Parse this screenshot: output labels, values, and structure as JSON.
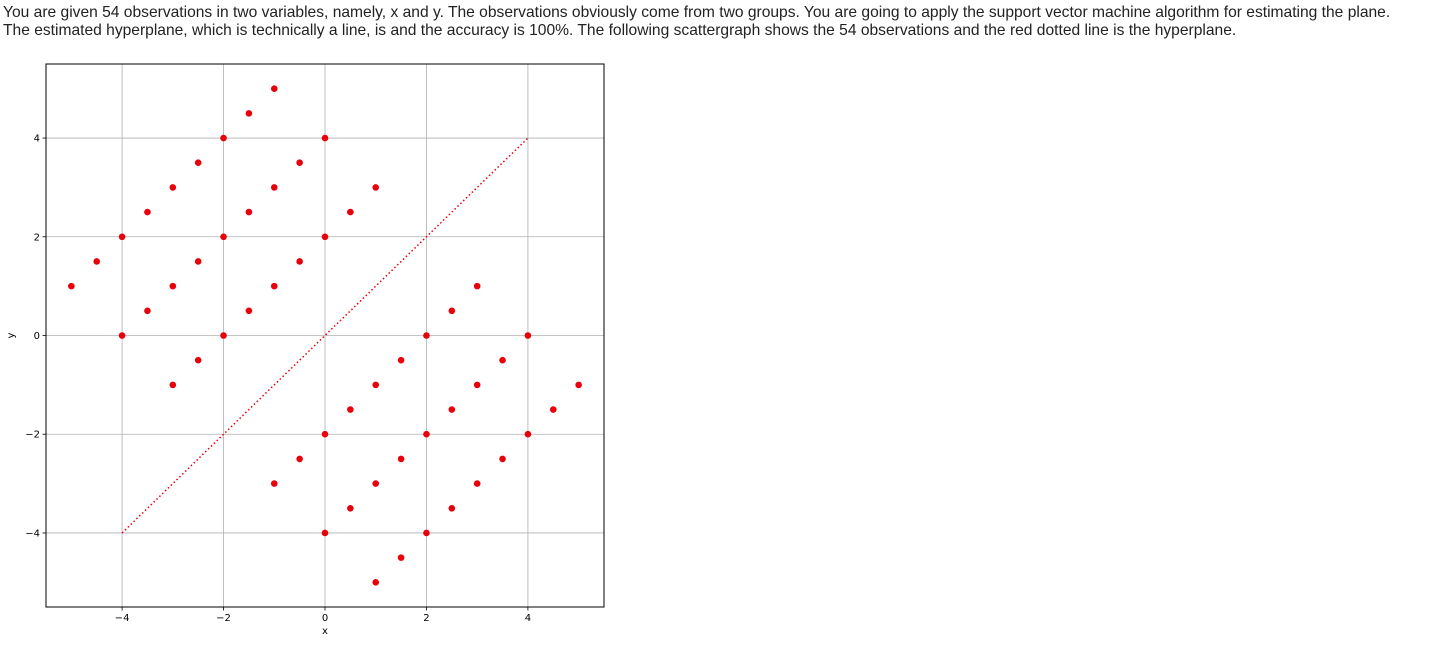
{
  "question": {
    "line1": "You are given 54 observations in two variables, namely, x and y.  The observations obviously come from two groups.  You are going to apply the support vector machine algorithm for estimating the plane.",
    "line2": "The estimated hyperplane, which is technically a line, is   and the accuracy is 100%.  The following scattergraph shows the 54 observations and the red dotted line is the hyperplane."
  },
  "chart_data": {
    "type": "scatter",
    "xlabel": "x",
    "ylabel": "y",
    "xlim": [
      -5.5,
      5.5
    ],
    "ylim": [
      -5.5,
      5.5
    ],
    "xticks": [
      -4,
      -2,
      0,
      2,
      4
    ],
    "yticks": [
      -4,
      -2,
      0,
      2,
      4
    ],
    "xtick_labels": [
      "−4",
      "−2",
      "0",
      "2",
      "4"
    ],
    "ytick_labels": [
      "−4",
      "−2",
      "0",
      "2",
      "4"
    ],
    "grid": true,
    "point_color": "#e8000b",
    "series": [
      {
        "x": [
          -5,
          -4.5,
          -4,
          -4,
          -3.5,
          -3.5,
          -3,
          -3,
          -3,
          -2.5,
          -2.5,
          -2.5,
          -2,
          -2,
          -2,
          -1.5,
          -1.5,
          -1.5,
          -1,
          -1,
          -1,
          -1,
          -0.5,
          -0.5,
          0,
          0,
          0.5,
          1,
          5,
          4.5,
          4,
          4,
          3.5,
          3.5,
          3,
          3,
          3,
          2.5,
          2.5,
          2.5,
          2,
          2,
          2,
          1.5,
          1.5,
          1.5,
          1,
          1,
          1,
          0.5,
          0.5,
          0,
          0,
          -0.5
        ],
        "y": [
          1,
          1.5,
          2,
          0,
          2.5,
          0.5,
          3,
          1,
          -1,
          3.5,
          1.5,
          -0.5,
          4,
          2,
          0,
          4.5,
          2.5,
          0.5,
          5,
          3,
          1,
          -3,
          3.5,
          1.5,
          4,
          2,
          2.5,
          3,
          -1,
          -1.5,
          -2,
          0,
          -0.5,
          -2.5,
          1,
          -1,
          -3,
          0.5,
          -1.5,
          -3.5,
          0,
          -2,
          -4,
          -0.5,
          -2.5,
          -4.5,
          -1,
          -3,
          -5,
          -1.5,
          -3.5,
          -2,
          -4,
          -2.5
        ]
      }
    ],
    "hyperplane": {
      "x": [
        -4,
        4
      ],
      "y": [
        -4,
        4
      ],
      "style": "dotted",
      "color": "#e8000b"
    }
  }
}
